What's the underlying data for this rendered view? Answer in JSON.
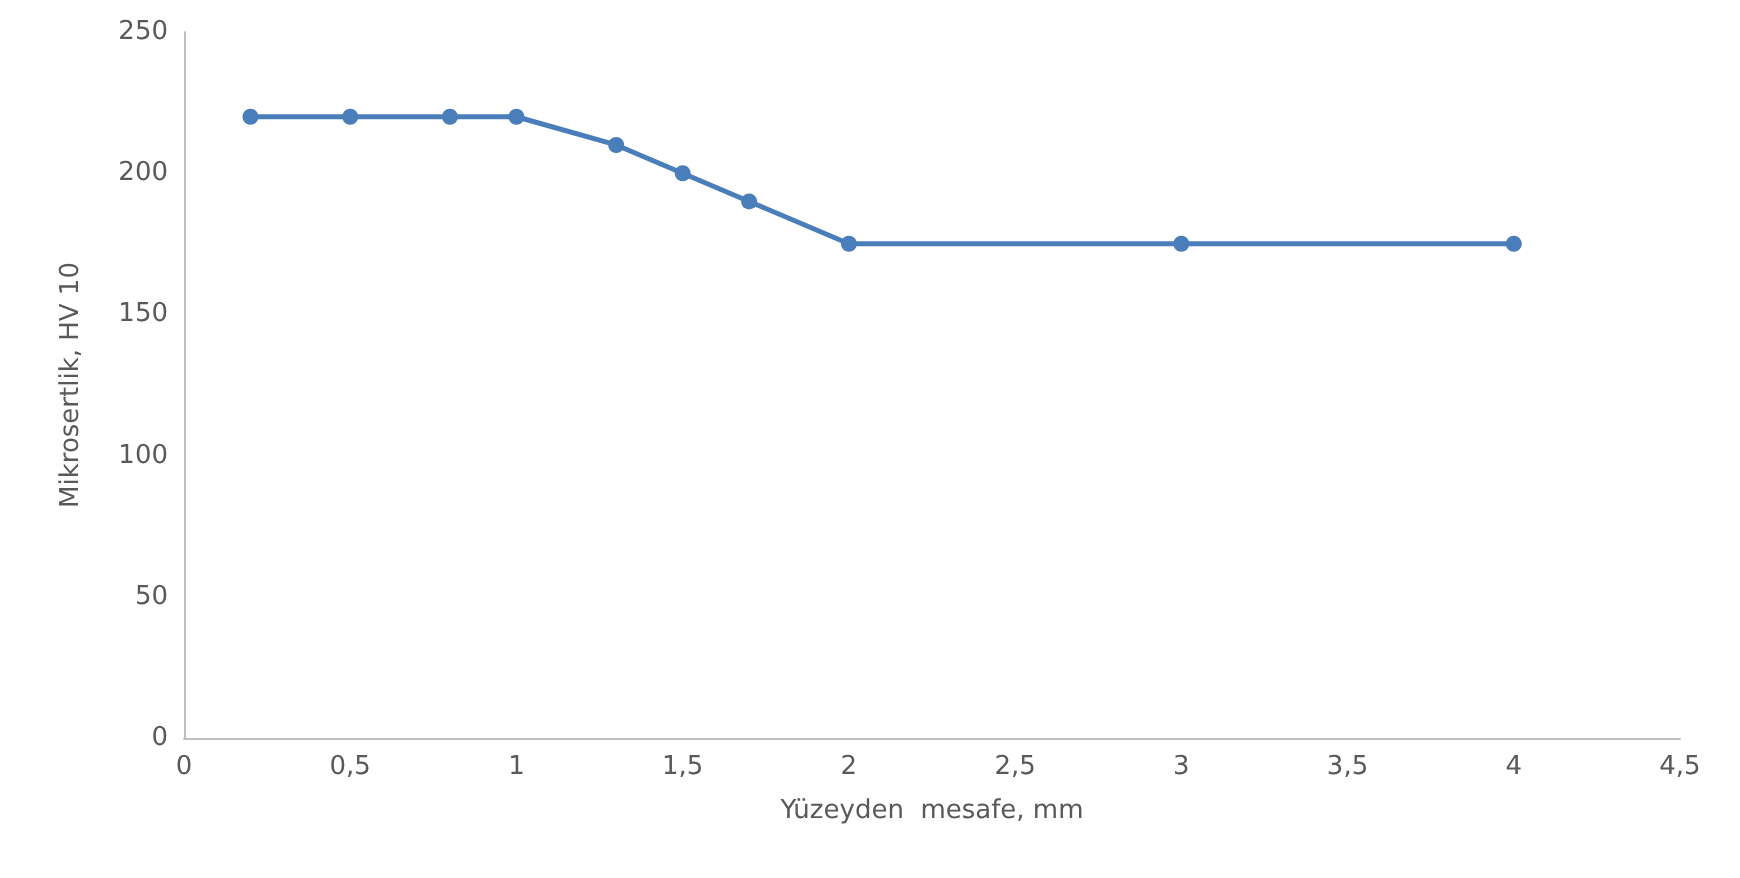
{
  "chart_data": {
    "type": "line",
    "xlabel": "Yüzeyden  mesafe, mm",
    "ylabel": "Mikrosertlik, HV 10",
    "x": [
      0.2,
      0.5,
      0.8,
      1,
      1.3,
      1.5,
      1.7,
      2,
      3,
      4
    ],
    "series": [
      {
        "color": "#4a7ebb",
        "values": [
          220,
          220,
          220,
          220,
          210,
          200,
          190,
          175,
          175,
          175
        ]
      }
    ],
    "xlim": [
      0,
      4.5
    ],
    "xticks": [
      0,
      {
        "value": 0.5,
        "label": "0,5"
      },
      1,
      {
        "value": 1.5,
        "label": "1,5"
      },
      2,
      {
        "value": 2.5,
        "label": "2,5"
      },
      3,
      {
        "value": 3.5,
        "label": "3,5"
      },
      4,
      {
        "value": 4.5,
        "label": "4,5"
      }
    ],
    "ylim": [
      0,
      250
    ],
    "yticks": [
      0,
      50,
      100,
      150,
      200,
      250
    ],
    "marker": "circle",
    "line_style": "solid"
  }
}
